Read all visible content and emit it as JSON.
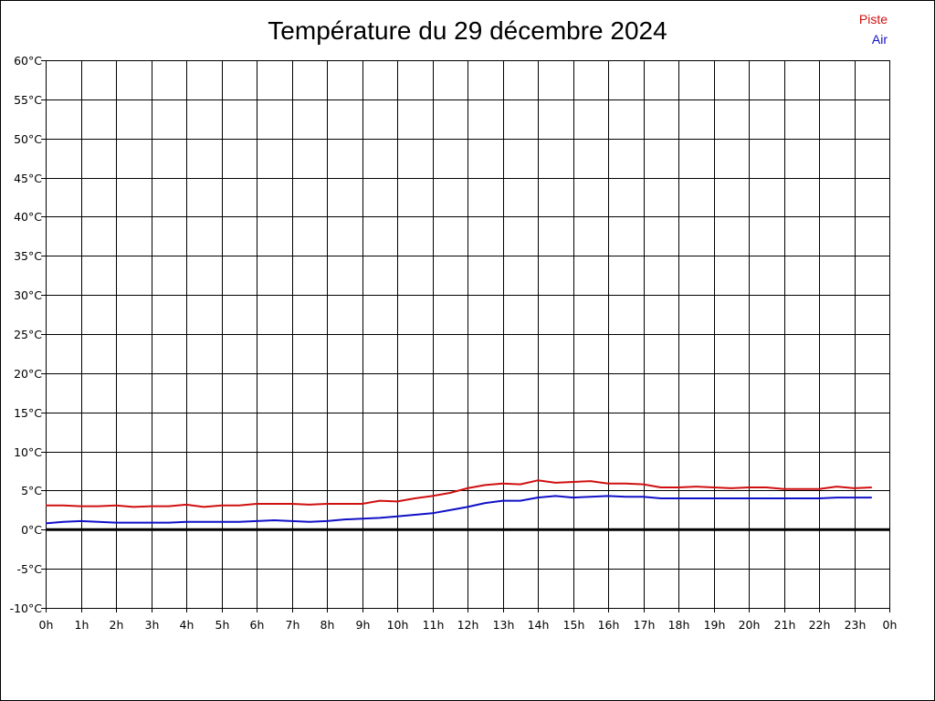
{
  "chart_data": {
    "type": "line",
    "title": "Température du 29 décembre 2024",
    "x_tick_labels": [
      "0h",
      "1h",
      "2h",
      "3h",
      "4h",
      "5h",
      "6h",
      "7h",
      "8h",
      "9h",
      "10h",
      "11h",
      "12h",
      "13h",
      "14h",
      "15h",
      "16h",
      "17h",
      "18h",
      "19h",
      "20h",
      "21h",
      "22h",
      "23h",
      "0h"
    ],
    "y_tick_labels": [
      "60°C",
      "55°C",
      "50°C",
      "45°C",
      "40°C",
      "35°C",
      "30°C",
      "25°C",
      "20°C",
      "15°C",
      "10°C",
      "5°C",
      "0°C",
      "-5°C",
      "-10°C"
    ],
    "xlim": [
      0,
      24
    ],
    "ylim": [
      -10,
      60
    ],
    "grid": true,
    "zero_line": true,
    "legend_position": "top-right",
    "series": [
      {
        "name": "Piste",
        "color": "#d01010",
        "x": [
          0,
          0.5,
          1,
          1.5,
          2,
          2.5,
          3,
          3.5,
          4,
          4.5,
          5,
          5.5,
          6,
          6.5,
          7,
          7.5,
          8,
          8.5,
          9,
          9.5,
          10,
          10.5,
          11,
          11.5,
          12,
          12.5,
          13,
          13.5,
          14,
          14.5,
          15,
          15.5,
          16,
          16.5,
          17,
          17.5,
          18,
          18.5,
          19,
          19.5,
          20,
          20.5,
          21,
          21.5,
          22,
          22.5,
          23,
          23.5
        ],
        "values": [
          3.1,
          3.1,
          3.0,
          3.0,
          3.1,
          2.9,
          3.0,
          3.0,
          3.2,
          2.9,
          3.1,
          3.1,
          3.3,
          3.3,
          3.3,
          3.2,
          3.3,
          3.3,
          3.3,
          3.7,
          3.6,
          4.0,
          4.3,
          4.7,
          5.3,
          5.7,
          5.9,
          5.8,
          6.3,
          6.0,
          6.1,
          6.2,
          5.9,
          5.9,
          5.8,
          5.4,
          5.4,
          5.5,
          5.4,
          5.3,
          5.4,
          5.4,
          5.2,
          5.2,
          5.2,
          5.5,
          5.3,
          5.4
        ]
      },
      {
        "name": "Air",
        "color": "#1010c8",
        "x": [
          0,
          0.5,
          1,
          1.5,
          2,
          2.5,
          3,
          3.5,
          4,
          4.5,
          5,
          5.5,
          6,
          6.5,
          7,
          7.5,
          8,
          8.5,
          9,
          9.5,
          10,
          10.5,
          11,
          11.5,
          12,
          12.5,
          13,
          13.5,
          14,
          14.5,
          15,
          15.5,
          16,
          16.5,
          17,
          17.5,
          18,
          18.5,
          19,
          19.5,
          20,
          20.5,
          21,
          21.5,
          22,
          22.5,
          23,
          23.5
        ],
        "values": [
          0.8,
          1.0,
          1.1,
          1.0,
          0.9,
          0.9,
          0.9,
          0.9,
          1.0,
          1.0,
          1.0,
          1.0,
          1.1,
          1.2,
          1.1,
          1.0,
          1.1,
          1.3,
          1.4,
          1.5,
          1.7,
          1.9,
          2.1,
          2.5,
          2.9,
          3.4,
          3.7,
          3.7,
          4.1,
          4.3,
          4.1,
          4.2,
          4.3,
          4.2,
          4.2,
          4.0,
          4.0,
          4.0,
          4.0,
          4.0,
          4.0,
          4.0,
          4.0,
          4.0,
          4.0,
          4.1,
          4.1,
          4.1
        ]
      }
    ]
  }
}
